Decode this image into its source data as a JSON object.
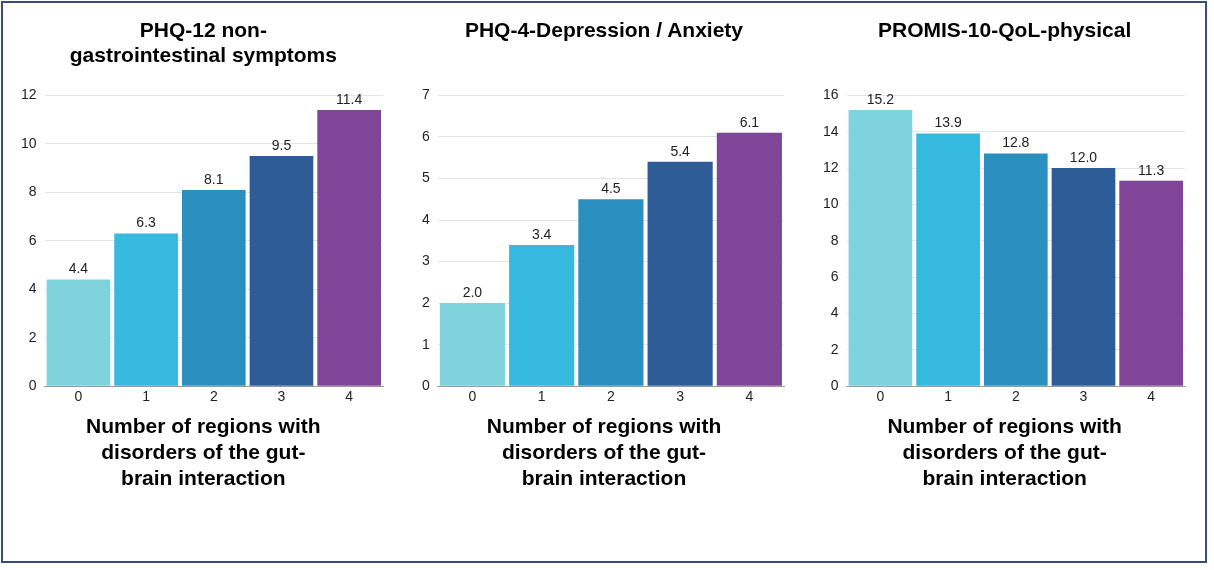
{
  "chart_data": [
    {
      "type": "bar",
      "title": "PHQ-12 non-gastrointestinal symptoms",
      "xlabel": "Number of regions with disorders of the gut-brain interaction",
      "categories": [
        "0",
        "1",
        "2",
        "3",
        "4"
      ],
      "values": [
        4.4,
        6.3,
        8.1,
        9.5,
        11.4
      ],
      "value_labels": [
        "4.4",
        "6.3",
        "8.1",
        "9.5",
        "11.4"
      ],
      "colors": [
        "#7fd3dc",
        "#35b9dc",
        "#2b8fc0",
        "#2e5c96",
        "#7f4597"
      ],
      "ylim": [
        0,
        12
      ],
      "yticks": [
        0,
        2,
        4,
        6,
        8,
        10,
        12
      ],
      "grid": "y"
    },
    {
      "type": "bar",
      "title": "PHQ-4-Depression / Anxiety",
      "xlabel": "Number of regions with disorders of the gut-brain interaction",
      "categories": [
        "0",
        "1",
        "2",
        "3",
        "4"
      ],
      "values": [
        2.0,
        3.4,
        4.5,
        5.4,
        6.1
      ],
      "value_labels": [
        "2.0",
        "3.4",
        "4.5",
        "5.4",
        "6.1"
      ],
      "colors": [
        "#7fd3dc",
        "#35b9dc",
        "#2b8fc0",
        "#2e5c96",
        "#7f4597"
      ],
      "ylim": [
        0,
        7
      ],
      "yticks": [
        0,
        1,
        2,
        3,
        4,
        5,
        6,
        7
      ],
      "grid": "y"
    },
    {
      "type": "bar",
      "title": "PROMIS-10-QoL-physical",
      "xlabel": "Number of regions with disorders of the gut-brain interaction",
      "categories": [
        "0",
        "1",
        "2",
        "3",
        "4"
      ],
      "values": [
        15.2,
        13.9,
        12.8,
        12.0,
        11.3
      ],
      "value_labels": [
        "15.2",
        "13.9",
        "12.8",
        "12.0",
        "11.3"
      ],
      "colors": [
        "#7fd3dc",
        "#35b9dc",
        "#2b8fc0",
        "#2e5c96",
        "#7f4597"
      ],
      "ylim": [
        0,
        16
      ],
      "yticks": [
        0,
        2,
        4,
        6,
        8,
        10,
        12,
        14,
        16
      ],
      "grid": "y"
    }
  ]
}
